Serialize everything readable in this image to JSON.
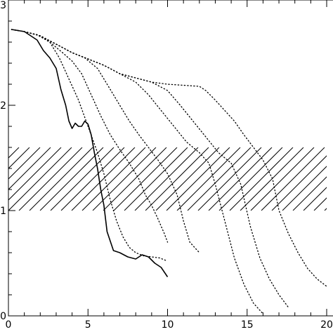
{
  "chart_data": {
    "type": "line",
    "title": "",
    "xlabel": "",
    "ylabel": "",
    "xlim": [
      0,
      20
    ],
    "ylim": [
      0,
      3
    ],
    "x_ticks": [
      0,
      5,
      10,
      15,
      20
    ],
    "y_ticks": [
      0,
      1,
      2,
      3
    ],
    "x_tick_labels": [
      "0",
      "5",
      "10",
      "15",
      "20"
    ],
    "y_tick_labels": [
      "0",
      "1",
      "2",
      "3"
    ],
    "grid": false,
    "shaded_band": {
      "y_min": 1.0,
      "y_max": 1.6,
      "pattern": "diagonal-hatch"
    },
    "series": [
      {
        "style": "solid",
        "x": [
          0.2,
          1.0,
          1.8,
          2.2,
          2.6,
          3.0,
          3.3,
          3.6,
          3.8,
          4.0,
          4.2,
          4.4,
          4.6,
          4.8,
          5.0,
          5.2,
          5.4,
          5.6,
          5.8,
          6.0,
          6.2,
          6.6,
          7.0,
          7.5,
          8.0,
          8.4,
          8.8,
          9.2,
          9.6,
          10.0
        ],
        "y": [
          2.72,
          2.7,
          2.62,
          2.52,
          2.45,
          2.35,
          2.15,
          2.0,
          1.85,
          1.78,
          1.83,
          1.8,
          1.8,
          1.85,
          1.82,
          1.72,
          1.55,
          1.4,
          1.2,
          1.05,
          0.8,
          0.62,
          0.6,
          0.56,
          0.54,
          0.58,
          0.56,
          0.5,
          0.46,
          0.37
        ]
      },
      {
        "style": "dotted",
        "x": [
          0.2,
          1.0,
          1.8,
          2.6,
          3.2,
          3.8,
          4.4,
          5.0,
          5.6,
          6.0,
          6.4,
          6.8,
          7.2,
          7.6,
          8.0,
          8.5,
          9.0,
          9.5,
          10.0
        ],
        "y": [
          2.72,
          2.7,
          2.67,
          2.6,
          2.45,
          2.25,
          2.05,
          1.8,
          1.55,
          1.35,
          1.1,
          0.9,
          0.75,
          0.65,
          0.6,
          0.57,
          0.56,
          0.55,
          0.52
        ]
      },
      {
        "style": "dotted",
        "x": [
          0.2,
          1.0,
          1.8,
          2.6,
          3.4,
          4.0,
          4.6,
          5.2,
          5.8,
          6.4,
          7.0,
          7.6,
          8.2,
          8.6,
          9.0,
          9.4,
          9.8,
          10.0
        ],
        "y": [
          2.72,
          2.7,
          2.67,
          2.6,
          2.5,
          2.42,
          2.3,
          2.1,
          1.9,
          1.72,
          1.58,
          1.45,
          1.3,
          1.15,
          1.05,
          0.92,
          0.78,
          0.7
        ]
      },
      {
        "style": "dotted",
        "x": [
          0.2,
          1.0,
          2.0,
          3.0,
          4.0,
          4.8,
          5.6,
          6.4,
          7.0,
          7.6,
          8.2,
          8.8,
          9.4,
          10.0,
          10.6,
          11.0,
          11.4,
          12.0
        ],
        "y": [
          2.72,
          2.7,
          2.66,
          2.58,
          2.5,
          2.45,
          2.35,
          2.15,
          2.0,
          1.85,
          1.72,
          1.6,
          1.48,
          1.35,
          1.15,
          0.9,
          0.7,
          0.6
        ]
      },
      {
        "style": "dotted",
        "x": [
          0.2,
          1.0,
          2.0,
          3.0,
          4.0,
          5.0,
          6.0,
          7.0,
          8.0,
          8.8,
          9.6,
          10.4,
          11.2,
          12.0,
          12.6,
          13.0,
          13.6,
          14.2,
          14.8,
          15.4,
          16.0
        ],
        "y": [
          2.72,
          2.7,
          2.66,
          2.58,
          2.5,
          2.44,
          2.38,
          2.3,
          2.22,
          2.1,
          1.95,
          1.8,
          1.65,
          1.55,
          1.45,
          1.25,
          0.9,
          0.55,
          0.3,
          0.12,
          0.02
        ]
      },
      {
        "style": "dotted",
        "x": [
          0.2,
          1.0,
          2.0,
          3.0,
          4.0,
          5.0,
          6.0,
          7.0,
          8.0,
          9.0,
          10.0,
          10.8,
          11.6,
          12.4,
          13.2,
          14.0,
          14.6,
          15.2,
          15.8,
          16.4,
          17.0,
          17.6
        ],
        "y": [
          2.72,
          2.7,
          2.66,
          2.58,
          2.5,
          2.44,
          2.38,
          2.3,
          2.26,
          2.22,
          2.14,
          2.0,
          1.85,
          1.7,
          1.55,
          1.45,
          1.25,
          0.85,
          0.55,
          0.35,
          0.2,
          0.08
        ]
      },
      {
        "style": "dotted",
        "x": [
          0.2,
          1.0,
          2.0,
          3.0,
          4.0,
          5.0,
          6.0,
          7.0,
          8.0,
          9.0,
          10.0,
          11.0,
          12.0,
          12.4,
          13.0,
          13.6,
          14.2,
          14.8,
          15.4,
          16.0,
          16.6,
          17.0,
          17.6,
          18.2,
          18.8,
          19.4,
          20.0
        ],
        "y": [
          2.72,
          2.7,
          2.66,
          2.58,
          2.5,
          2.44,
          2.38,
          2.3,
          2.26,
          2.22,
          2.2,
          2.19,
          2.18,
          2.14,
          2.05,
          1.95,
          1.85,
          1.72,
          1.6,
          1.48,
          1.3,
          1.0,
          0.78,
          0.6,
          0.45,
          0.35,
          0.28
        ]
      }
    ]
  }
}
